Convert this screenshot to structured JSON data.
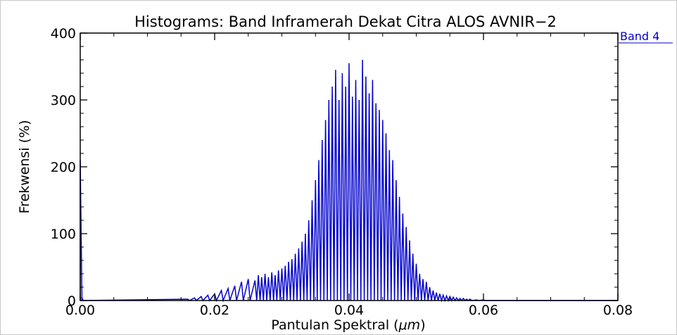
{
  "chart_data": {
    "type": "line",
    "title": "Histograms: Band Inframerah Dekat Citra ALOS AVNIR−2",
    "xlabel_prefix": "Pantulan Spektral (",
    "xlabel_unit": "μm",
    "xlabel_suffix": ")",
    "ylabel": "Frekwensi (%)",
    "xlim": [
      0,
      0.08
    ],
    "ylim": [
      0,
      400
    ],
    "x_ticks": [
      0.0,
      0.02,
      0.04,
      0.06,
      0.08
    ],
    "x_tick_labels": [
      "0.00",
      "0.02",
      "0.04",
      "0.06",
      "0.08"
    ],
    "y_ticks": [
      0,
      100,
      200,
      300,
      400
    ],
    "y_tick_labels": [
      "0",
      "100",
      "200",
      "300",
      "400"
    ],
    "grid": false,
    "legend_position": "top-right",
    "series_color": "#0000cc",
    "series": [
      {
        "name": "Band 4",
        "x": [
          0.0,
          0.0002,
          0.0004,
          0.016,
          0.017,
          0.018,
          0.019,
          0.02,
          0.021,
          0.022,
          0.023,
          0.024,
          0.025,
          0.026,
          0.0265,
          0.027,
          0.0275,
          0.028,
          0.0285,
          0.029,
          0.0295,
          0.03,
          0.0305,
          0.031,
          0.0315,
          0.032,
          0.0325,
          0.033,
          0.0335,
          0.034,
          0.0345,
          0.035,
          0.0355,
          0.036,
          0.0365,
          0.037,
          0.0375,
          0.038,
          0.0385,
          0.039,
          0.0395,
          0.04,
          0.0405,
          0.041,
          0.0415,
          0.042,
          0.0425,
          0.043,
          0.0435,
          0.044,
          0.0445,
          0.045,
          0.0455,
          0.046,
          0.0465,
          0.047,
          0.0475,
          0.048,
          0.0485,
          0.049,
          0.0495,
          0.05,
          0.0505,
          0.051,
          0.0515,
          0.052,
          0.0525,
          0.053,
          0.0535,
          0.054,
          0.0545,
          0.055,
          0.0555,
          0.056,
          0.0565,
          0.057,
          0.0575,
          0.058,
          0.059,
          0.06,
          0.061,
          0.062
        ],
        "y": [
          210,
          5,
          0,
          2,
          4,
          6,
          8,
          10,
          15,
          18,
          22,
          28,
          32,
          30,
          38,
          35,
          40,
          35,
          42,
          38,
          45,
          48,
          52,
          58,
          62,
          70,
          78,
          88,
          100,
          120,
          150,
          180,
          210,
          240,
          270,
          300,
          320,
          345,
          300,
          340,
          320,
          355,
          305,
          330,
          300,
          360,
          335,
          310,
          330,
          295,
          285,
          270,
          250,
          225,
          210,
          180,
          155,
          130,
          110,
          90,
          70,
          55,
          40,
          32,
          28,
          20,
          15,
          12,
          10,
          8,
          7,
          6,
          5,
          4,
          3,
          3,
          2,
          2,
          1,
          1,
          0,
          0
        ]
      }
    ]
  }
}
